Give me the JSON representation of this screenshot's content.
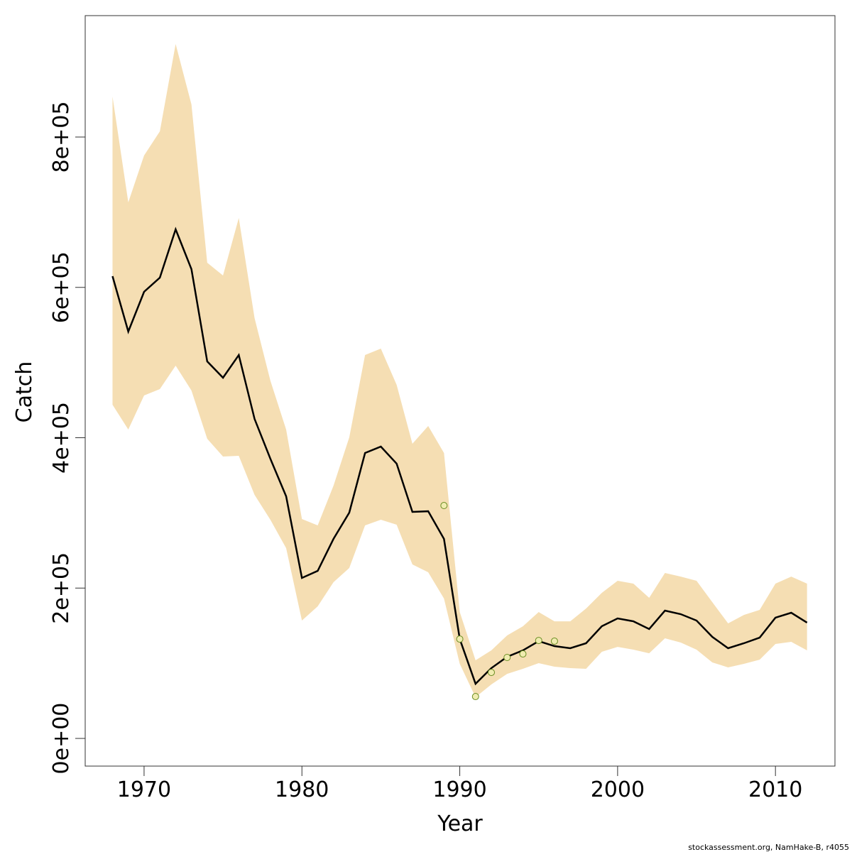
{
  "chart_data": {
    "type": "line",
    "x_label": "Year",
    "y_label": "Catch",
    "footer": "stockassessment.org, NamHake-B, r4055",
    "x": [
      1968,
      1969,
      1970,
      1971,
      1972,
      1973,
      1974,
      1975,
      1976,
      1977,
      1978,
      1979,
      1980,
      1981,
      1982,
      1983,
      1984,
      1985,
      1986,
      1987,
      1988,
      1989,
      1990,
      1991,
      1992,
      1993,
      1994,
      1995,
      1996,
      1997,
      1998,
      1999,
      2000,
      2001,
      2002,
      2003,
      2004,
      2005,
      2006,
      2007,
      2008,
      2009,
      2010,
      2011,
      2012
    ],
    "values": [
      614900,
      541200,
      594100,
      613000,
      677200,
      624300,
      501500,
      479800,
      510000,
      425000,
      372100,
      322100,
      213500,
      222900,
      265400,
      300400,
      379700,
      388200,
      365500,
      301300,
      302200,
      265400,
      132200,
      72700,
      93500,
      108600,
      117100,
      129400,
      122800,
      120000,
      126600,
      149200,
      159600,
      155800,
      145500,
      170000,
      165300,
      156800,
      135100,
      120000,
      126600,
      134100,
      160600,
      167200,
      154000
    ],
    "upper": [
      853800,
      713100,
      775400,
      807500,
      923700,
      843400,
      632800,
      615800,
      692300,
      559100,
      476000,
      410900,
      291900,
      283400,
      336200,
      400500,
      510000,
      518500,
      470400,
      392000,
      415600,
      379700,
      168100,
      103900,
      117100,
      137000,
      149200,
      168100,
      155800,
      155800,
      172800,
      193600,
      209700,
      205900,
      187000,
      220100,
      215300,
      209700,
      181300,
      153000,
      164300,
      171000,
      205900,
      215300,
      205900
    ],
    "lower": [
      443900,
      410900,
      456200,
      464700,
      495900,
      462800,
      398600,
      375000,
      375900,
      324000,
      290900,
      253100,
      156800,
      175700,
      207800,
      226700,
      283400,
      290900,
      284300,
      231400,
      221000,
      186100,
      99200,
      54800,
      71800,
      85900,
      92600,
      100100,
      95400,
      93500,
      92600,
      115200,
      121800,
      118100,
      113300,
      133200,
      127500,
      118100,
      101100,
      94500,
      99200,
      104800,
      125600,
      128500,
      117100
    ],
    "observations": {
      "x": [
        1989,
        1990,
        1991,
        1992,
        1993,
        1994,
        1995,
        1996
      ],
      "values": [
        309800,
        132200,
        55700,
        87800,
        107700,
        112400,
        130300,
        129400
      ]
    },
    "color": "#000000",
    "band_color": "#f5deb3",
    "obs_color": "#6b8e23",
    "xlim": [
      1966.27,
      2013.77
    ],
    "ylim": [
      -36800,
      961500
    ],
    "xticks": [
      1970,
      1980,
      1990,
      2000,
      2010
    ],
    "yticks": [
      {
        "value": 0,
        "label": "0e+00"
      },
      {
        "value": 200000,
        "label": "2e+05"
      },
      {
        "value": 400000,
        "label": "4e+05"
      },
      {
        "value": 600000,
        "label": "6e+05"
      },
      {
        "value": 800000,
        "label": "8e+05"
      }
    ]
  }
}
